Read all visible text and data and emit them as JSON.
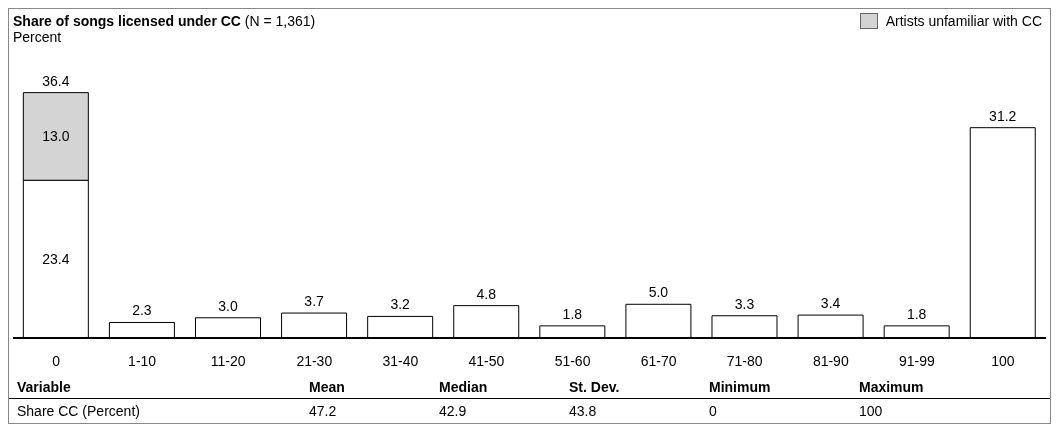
{
  "chart_data": {
    "type": "bar",
    "title": "Share of songs licensed under CC",
    "subtitle": "(N = 1,361)",
    "ylabel": "Percent",
    "stacked": true,
    "legend": "top right",
    "grid": false,
    "categories": [
      "0",
      "1-10",
      "11-20",
      "21-30",
      "31-40",
      "41-50",
      "51-60",
      "61-70",
      "71-80",
      "81-90",
      "91-99",
      "100"
    ],
    "series": [
      {
        "color": "#ffffff",
        "values": [
          23.4,
          2.3,
          3.0,
          3.7,
          3.2,
          4.8,
          1.8,
          5.0,
          3.3,
          3.4,
          1.8,
          31.2
        ],
        "value_labels": [
          "23.4",
          "2.3",
          "3.0",
          "3.7",
          "3.2",
          "4.8",
          "1.8",
          "5.0",
          "3.3",
          "3.4",
          "1.8",
          "31.2"
        ]
      },
      {
        "name": "Artists unfamiliar with CC",
        "color": "#d4d4d4",
        "values": [
          13.0,
          null,
          null,
          null,
          null,
          null,
          null,
          null,
          null,
          null,
          null,
          null
        ],
        "value_labels": [
          "13.0",
          null,
          null,
          null,
          null,
          null,
          null,
          null,
          null,
          null,
          null,
          null
        ]
      }
    ],
    "totals": [
      "36.4",
      null,
      null,
      null,
      null,
      null,
      null,
      null,
      null,
      null,
      null,
      null
    ],
    "annotations": [
      "Variable",
      "Mean",
      "Median",
      "St. Dev.",
      "Minimum",
      "Maximum",
      "Share CC (Percent)",
      "47.2",
      "42.9",
      "43.8",
      "0",
      "100"
    ]
  }
}
